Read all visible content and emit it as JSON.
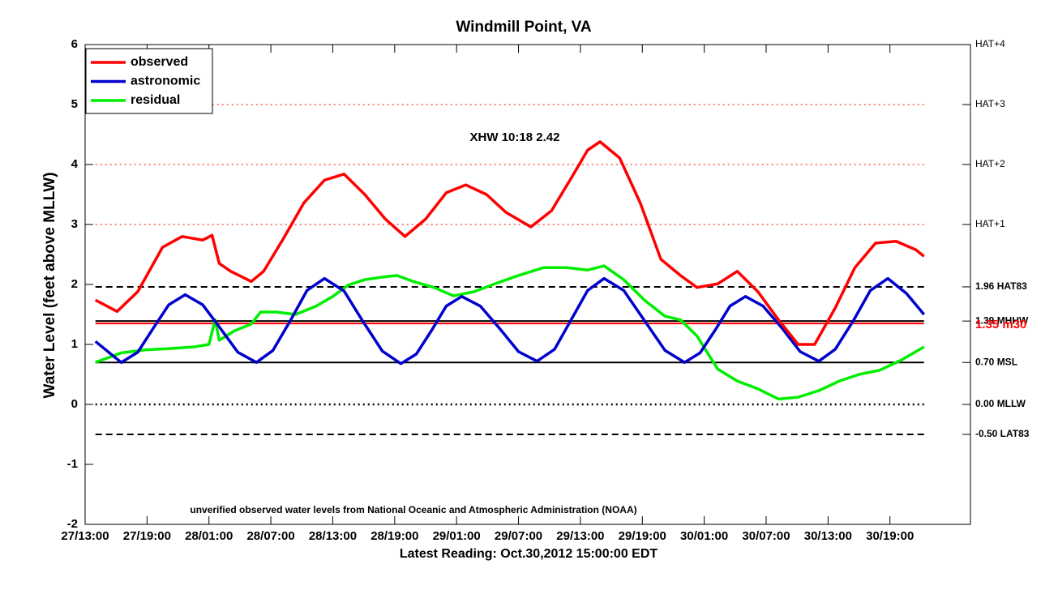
{
  "chart_data": {
    "type": "line",
    "title": "Windmill Point, VA",
    "xlabel": "Latest Reading: Oct.30,2012 15:00:00 EDT",
    "ylabel": "Water Level (feet above MLLW)",
    "annotations": [
      "XHW 10:18 2.42",
      "unverified observed water levels from National Oceanic and Atmospheric Administration (NOAA)"
    ],
    "xlim": [
      0,
      85.8
    ],
    "xticks": [
      {
        "value": 0,
        "label": "27/13:00"
      },
      {
        "value": 6,
        "label": "27/19:00"
      },
      {
        "value": 12,
        "label": "28/01:00"
      },
      {
        "value": 18,
        "label": "28/07:00"
      },
      {
        "value": 24,
        "label": "28/13:00"
      },
      {
        "value": 30,
        "label": "28/19:00"
      },
      {
        "value": 36,
        "label": "29/01:00"
      },
      {
        "value": 42,
        "label": "29/07:00"
      },
      {
        "value": 48,
        "label": "29/13:00"
      },
      {
        "value": 54,
        "label": "29/19:00"
      },
      {
        "value": 60,
        "label": "30/01:00"
      },
      {
        "value": 66,
        "label": "30/07:00"
      },
      {
        "value": 72,
        "label": "30/13:00"
      },
      {
        "value": 78,
        "label": "30/19:00"
      }
    ],
    "ylim": [
      -2,
      6
    ],
    "yticks": [
      -2,
      -1,
      0,
      1,
      2,
      3,
      4,
      5,
      6
    ],
    "y2lim": [
      -2,
      6
    ],
    "y2ticks": [
      {
        "value": 6,
        "label": "HAT+4"
      },
      {
        "value": 5,
        "label": "HAT+3"
      },
      {
        "value": 4,
        "label": "HAT+2"
      },
      {
        "value": 3,
        "label": "HAT+1"
      },
      {
        "value": 1.96,
        "label": "1.96 HAT83"
      },
      {
        "value": 1.39,
        "label": "1.39 MHHW"
      },
      {
        "value": 0.7,
        "label": "0.70 MSL"
      },
      {
        "value": 0,
        "label": "0.00 MLLW"
      },
      {
        "value": -0.5,
        "label": "-0.50 LAT83"
      }
    ],
    "hlines": [
      {
        "value": 5,
        "dash": "dotted",
        "color": "#ff0000"
      },
      {
        "value": 4,
        "dash": "dotted",
        "color": "#ff0000"
      },
      {
        "value": 3,
        "dash": "dotted",
        "color": "#ff0000"
      },
      {
        "value": 1.96,
        "dash": "dashed",
        "color": "#000000"
      },
      {
        "value": 1.39,
        "dash": "solid",
        "color": "#000000"
      },
      {
        "value": 1.35,
        "dash": "solid",
        "color": "#ff0000",
        "label": "1.35 m30"
      },
      {
        "value": 0.7,
        "dash": "solid",
        "color": "#000000"
      },
      {
        "value": 0,
        "dash": "dotted",
        "color": "#000000"
      },
      {
        "value": -0.5,
        "dash": "dashed",
        "color": "#000000"
      }
    ],
    "legend": "upper left",
    "series": [
      {
        "name": "observed",
        "color": "#ff0000",
        "x": [
          1.0,
          3.1,
          5.1,
          7.5,
          9.4,
          11.4,
          12.3,
          13.0,
          14.1,
          16.1,
          17.3,
          19.2,
          21.2,
          23.2,
          25.1,
          27.1,
          29.1,
          31.0,
          33.0,
          35.0,
          36.9,
          38.9,
          40.8,
          43.2,
          45.2,
          47.1,
          48.7,
          49.9,
          51.8,
          53.8,
          55.8,
          57.7,
          59.3,
          61.3,
          63.2,
          65.2,
          67.2,
          69.1,
          70.7,
          72.7,
          74.6,
          76.6,
          78.6,
          80.5,
          81.3
        ],
        "values": [
          1.74,
          1.55,
          1.88,
          2.62,
          2.8,
          2.74,
          2.82,
          2.35,
          2.22,
          2.05,
          2.22,
          2.76,
          3.36,
          3.74,
          3.84,
          3.5,
          3.09,
          2.8,
          3.09,
          3.53,
          3.66,
          3.5,
          3.2,
          2.96,
          3.23,
          3.77,
          4.24,
          4.38,
          4.11,
          3.36,
          2.42,
          2.15,
          1.95,
          2.01,
          2.22,
          1.88,
          1.41,
          1.0,
          1.0,
          1.61,
          2.28,
          2.69,
          2.72,
          2.58,
          2.47
        ]
      },
      {
        "name": "astronomic",
        "color": "#0000cc",
        "x": [
          1.0,
          3.5,
          5.1,
          6.6,
          8.1,
          9.7,
          11.4,
          13.1,
          14.8,
          16.6,
          18.2,
          19.9,
          21.5,
          23.2,
          25.1,
          26.9,
          28.8,
          30.6,
          32.1,
          33.6,
          35.0,
          36.5,
          38.3,
          40.2,
          42.0,
          43.8,
          45.5,
          47.1,
          48.7,
          50.3,
          52.2,
          54.2,
          56.2,
          58.1,
          59.6,
          61.1,
          62.5,
          64.0,
          65.7,
          67.6,
          69.3,
          71.1,
          72.7,
          74.5,
          76.1,
          77.8,
          79.6,
          81.3
        ],
        "values": [
          1.05,
          0.7,
          0.87,
          1.27,
          1.66,
          1.83,
          1.66,
          1.27,
          0.87,
          0.7,
          0.9,
          1.4,
          1.9,
          2.1,
          1.89,
          1.39,
          0.89,
          0.68,
          0.84,
          1.24,
          1.64,
          1.8,
          1.64,
          1.26,
          0.88,
          0.72,
          0.92,
          1.41,
          1.9,
          2.1,
          1.9,
          1.4,
          0.9,
          0.7,
          0.86,
          1.25,
          1.64,
          1.8,
          1.64,
          1.26,
          0.88,
          0.72,
          0.92,
          1.41,
          1.9,
          2.1,
          1.85,
          1.5
        ]
      },
      {
        "name": "residual",
        "color": "#00ee00",
        "x": [
          1.0,
          3.5,
          5.9,
          8.2,
          10.6,
          12.0,
          12.6,
          13.0,
          14.5,
          16.1,
          17.0,
          18.5,
          20.4,
          22.4,
          24.0,
          25.5,
          27.1,
          28.7,
          30.2,
          31.8,
          33.8,
          35.7,
          37.7,
          39.7,
          42.0,
          44.4,
          46.7,
          48.7,
          50.3,
          52.2,
          54.2,
          56.2,
          57.7,
          59.3,
          61.3,
          63.2,
          65.2,
          67.2,
          69.1,
          71.1,
          73.1,
          75.0,
          77.0,
          79.0,
          81.3
        ],
        "values": [
          0.7,
          0.86,
          0.91,
          0.93,
          0.96,
          1.0,
          1.41,
          1.07,
          1.23,
          1.34,
          1.54,
          1.54,
          1.5,
          1.64,
          1.8,
          1.99,
          2.08,
          2.12,
          2.15,
          2.05,
          1.95,
          1.81,
          1.88,
          2.01,
          2.15,
          2.28,
          2.28,
          2.24,
          2.31,
          2.08,
          1.74,
          1.47,
          1.41,
          1.14,
          0.59,
          0.39,
          0.26,
          0.09,
          0.12,
          0.23,
          0.39,
          0.5,
          0.57,
          0.73,
          0.96
        ]
      }
    ]
  }
}
